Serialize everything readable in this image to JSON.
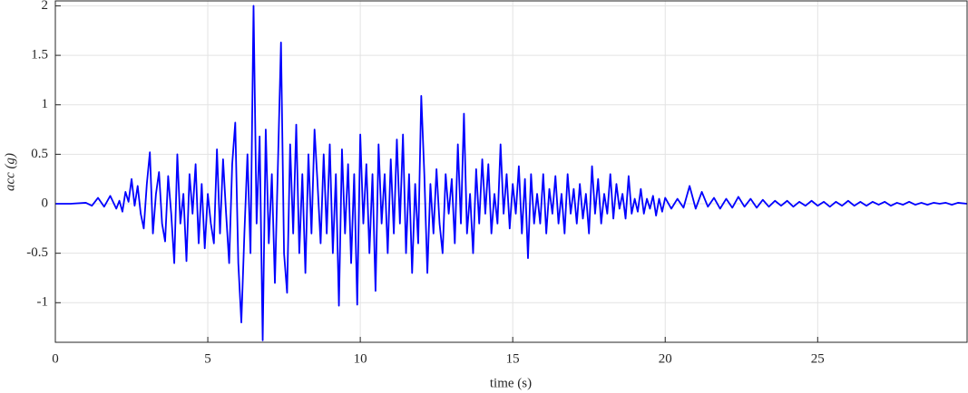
{
  "chart_data": {
    "type": "line",
    "xlabel": "time (s)",
    "ylabel": "acc (g)",
    "color": "#0000ff",
    "grid": true,
    "xlim": [
      0,
      29.9
    ],
    "ylim": [
      -1.4,
      2.05
    ],
    "xticks": [
      0,
      5,
      10,
      15,
      20,
      25
    ],
    "yticks": [
      -1,
      -0.5,
      0,
      0.5,
      1,
      1.5,
      2
    ],
    "x": [
      0,
      0.5,
      1,
      1.2,
      1.4,
      1.6,
      1.8,
      2,
      2.1,
      2.2,
      2.3,
      2.4,
      2.5,
      2.6,
      2.7,
      2.8,
      2.9,
      3,
      3.1,
      3.2,
      3.3,
      3.4,
      3.5,
      3.6,
      3.7,
      3.8,
      3.9,
      4,
      4.1,
      4.2,
      4.3,
      4.4,
      4.5,
      4.6,
      4.7,
      4.8,
      4.9,
      5,
      5.1,
      5.2,
      5.3,
      5.4,
      5.5,
      5.6,
      5.7,
      5.8,
      5.9,
      6,
      6.1,
      6.2,
      6.3,
      6.4,
      6.5,
      6.6,
      6.7,
      6.8,
      6.9,
      7,
      7.1,
      7.2,
      7.3,
      7.4,
      7.5,
      7.6,
      7.7,
      7.8,
      7.9,
      8,
      8.1,
      8.2,
      8.3,
      8.4,
      8.5,
      8.6,
      8.7,
      8.8,
      8.9,
      9,
      9.1,
      9.2,
      9.3,
      9.4,
      9.5,
      9.6,
      9.7,
      9.8,
      9.9,
      10,
      10.1,
      10.2,
      10.3,
      10.4,
      10.5,
      10.6,
      10.7,
      10.8,
      10.9,
      11,
      11.1,
      11.2,
      11.3,
      11.4,
      11.5,
      11.6,
      11.7,
      11.8,
      11.9,
      12,
      12.1,
      12.2,
      12.3,
      12.4,
      12.5,
      12.6,
      12.7,
      12.8,
      12.9,
      13,
      13.1,
      13.2,
      13.3,
      13.4,
      13.5,
      13.6,
      13.7,
      13.8,
      13.9,
      14,
      14.1,
      14.2,
      14.3,
      14.4,
      14.5,
      14.6,
      14.7,
      14.8,
      14.9,
      15,
      15.1,
      15.2,
      15.3,
      15.4,
      15.5,
      15.6,
      15.7,
      15.8,
      15.9,
      16,
      16.1,
      16.2,
      16.3,
      16.4,
      16.5,
      16.6,
      16.7,
      16.8,
      16.9,
      17,
      17.1,
      17.2,
      17.3,
      17.4,
      17.5,
      17.6,
      17.7,
      17.8,
      17.9,
      18,
      18.1,
      18.2,
      18.3,
      18.4,
      18.5,
      18.6,
      18.7,
      18.8,
      18.9,
      19,
      19.1,
      19.2,
      19.3,
      19.4,
      19.5,
      19.6,
      19.7,
      19.8,
      19.9,
      20,
      20.2,
      20.4,
      20.6,
      20.8,
      21,
      21.2,
      21.4,
      21.6,
      21.8,
      22,
      22.2,
      22.4,
      22.6,
      22.8,
      23,
      23.2,
      23.4,
      23.6,
      23.8,
      24,
      24.2,
      24.4,
      24.6,
      24.8,
      25,
      25.2,
      25.4,
      25.6,
      25.8,
      26,
      26.2,
      26.4,
      26.6,
      26.8,
      27,
      27.2,
      27.4,
      27.6,
      27.8,
      28,
      28.2,
      28.4,
      28.6,
      28.8,
      29,
      29.2,
      29.4,
      29.6,
      29.9
    ],
    "values": [
      0,
      0,
      0.01,
      -0.02,
      0.06,
      -0.03,
      0.08,
      -0.05,
      0.03,
      -0.08,
      0.12,
      0.02,
      0.25,
      -0.02,
      0.18,
      -0.1,
      -0.25,
      0.2,
      0.52,
      -0.3,
      0.1,
      0.32,
      -0.2,
      -0.38,
      0.28,
      -0.1,
      -0.6,
      0.5,
      -0.2,
      0.1,
      -0.58,
      0.3,
      -0.1,
      0.4,
      -0.4,
      0.2,
      -0.45,
      0.1,
      -0.2,
      -0.4,
      0.55,
      -0.3,
      0.45,
      -0.1,
      -0.6,
      0.4,
      0.82,
      -0.6,
      -1.2,
      -0.3,
      0.5,
      -0.5,
      2.0,
      -0.2,
      0.68,
      -1.38,
      0.75,
      -0.4,
      0.3,
      -0.8,
      0.4,
      1.63,
      -0.5,
      -0.9,
      0.6,
      -0.3,
      0.8,
      -0.5,
      0.3,
      -0.7,
      0.5,
      -0.3,
      0.75,
      0.2,
      -0.4,
      0.5,
      -0.3,
      0.6,
      -0.5,
      0.3,
      -1.03,
      0.55,
      -0.3,
      0.4,
      -0.6,
      0.3,
      -1.02,
      0.7,
      -0.2,
      0.4,
      -0.5,
      0.3,
      -0.88,
      0.6,
      -0.2,
      0.3,
      -0.5,
      0.45,
      -0.3,
      0.65,
      -0.2,
      0.7,
      -0.5,
      0.3,
      -0.7,
      0.2,
      -0.4,
      1.09,
      0.3,
      -0.7,
      0.2,
      -0.3,
      0.35,
      -0.2,
      -0.5,
      0.3,
      -0.1,
      0.25,
      -0.4,
      0.6,
      -0.2,
      0.91,
      -0.3,
      0.1,
      -0.5,
      0.35,
      -0.2,
      0.45,
      -0.1,
      0.4,
      -0.3,
      0.1,
      -0.2,
      0.6,
      -0.1,
      0.3,
      -0.25,
      0.2,
      -0.1,
      0.38,
      -0.3,
      0.25,
      -0.55,
      0.3,
      -0.2,
      0.1,
      -0.2,
      0.3,
      -0.3,
      0.15,
      -0.1,
      0.28,
      -0.2,
      0.1,
      -0.3,
      0.3,
      -0.1,
      0.15,
      -0.2,
      0.2,
      -0.15,
      0.1,
      -0.3,
      0.38,
      -0.1,
      0.25,
      -0.2,
      0.1,
      -0.1,
      0.3,
      -0.15,
      0.2,
      -0.05,
      0.1,
      -0.15,
      0.28,
      -0.1,
      0.05,
      -0.08,
      0.15,
      -0.1,
      0.05,
      -0.05,
      0.08,
      -0.12,
      0.05,
      -0.08,
      0.06,
      -0.05,
      0.05,
      -0.04,
      0.18,
      -0.05,
      0.12,
      -0.03,
      0.06,
      -0.05,
      0.05,
      -0.04,
      0.07,
      -0.03,
      0.05,
      -0.04,
      0.04,
      -0.03,
      0.03,
      -0.02,
      0.03,
      -0.03,
      0.02,
      -0.02,
      0.03,
      -0.02,
      0.02,
      -0.03,
      0.02,
      -0.02,
      0.03,
      -0.02,
      0.02,
      -0.02,
      0.02,
      -0.01,
      0.02,
      -0.02,
      0.01,
      -0.01,
      0.02,
      -0.01,
      0.01,
      -0.01,
      0.01,
      0,
      0.01,
      -0.01,
      0.01,
      0
    ]
  }
}
